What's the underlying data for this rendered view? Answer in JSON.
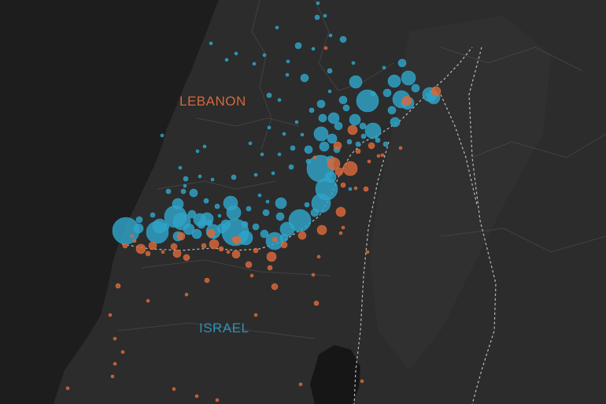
{
  "labels": {
    "lebanon": "LEBANON",
    "israel": "ISRAEL"
  },
  "colors": {
    "sea": "#1d1d1d",
    "land": "#2c2c2c",
    "land_shade": "#333333",
    "lake": "#161616",
    "border": "#bdbdbd",
    "district_lines": "#4a4a4a",
    "lebanon_label": "#d4693a",
    "israel_label": "#2e93b5",
    "blue_dots": "#2fa3c8",
    "orange_dots": "#d8693a"
  },
  "series": [
    {
      "color_key": "blue_dots",
      "points": [
        [
          404,
          4,
          2
        ],
        [
          403,
          22,
          3
        ],
        [
          413,
          20,
          2
        ],
        [
          352,
          35,
          2
        ],
        [
          436,
          50,
          4
        ],
        [
          420,
          45,
          2
        ],
        [
          379,
          58,
          4
        ],
        [
          268,
          55,
          2
        ],
        [
          288,
          76,
          2
        ],
        [
          300,
          68,
          2
        ],
        [
          336,
          70,
          2
        ],
        [
          323,
          81,
          2
        ],
        [
          366,
          78,
          2
        ],
        [
          398,
          62,
          2
        ],
        [
          449,
          80,
          2
        ],
        [
          511,
          80,
          5
        ],
        [
          488,
          86,
          2
        ],
        [
          387,
          99,
          5
        ],
        [
          365,
          95,
          2
        ],
        [
          419,
          90,
          3
        ],
        [
          452,
          104,
          8
        ],
        [
          501,
          103,
          8
        ],
        [
          519,
          99,
          9
        ],
        [
          528,
          112,
          5
        ],
        [
          492,
          118,
          5
        ],
        [
          546,
          120,
          9
        ],
        [
          551,
          124,
          8
        ],
        [
          467,
          128,
          14
        ],
        [
          510,
          126,
          11
        ],
        [
          518,
          131,
          8
        ],
        [
          436,
          127,
          5
        ],
        [
          474,
          119,
          3
        ],
        [
          342,
          121,
          3
        ],
        [
          355,
          127,
          2
        ],
        [
          408,
          132,
          5
        ],
        [
          419,
          116,
          2
        ],
        [
          440,
          137,
          4
        ],
        [
          451,
          152,
          7
        ],
        [
          461,
          160,
          4
        ],
        [
          498,
          140,
          5
        ],
        [
          502,
          155,
          6
        ],
        [
          410,
          150,
          5
        ],
        [
          396,
          140,
          3
        ],
        [
          377,
          155,
          2
        ],
        [
          342,
          162,
          2
        ],
        [
          361,
          170,
          2
        ],
        [
          384,
          171,
          2
        ],
        [
          424,
          150,
          7
        ],
        [
          430,
          160,
          5
        ],
        [
          474,
          166,
          10
        ],
        [
          480,
          178,
          3
        ],
        [
          490,
          183,
          3
        ],
        [
          408,
          170,
          9
        ],
        [
          422,
          176,
          6
        ],
        [
          428,
          190,
          4
        ],
        [
          444,
          180,
          3
        ],
        [
          455,
          183,
          3
        ],
        [
          412,
          186,
          6
        ],
        [
          392,
          190,
          5
        ],
        [
          372,
          188,
          3
        ],
        [
          355,
          196,
          2
        ],
        [
          333,
          196,
          2
        ],
        [
          318,
          182,
          2
        ],
        [
          260,
          186,
          2
        ],
        [
          251,
          192,
          2
        ],
        [
          229,
          213,
          2
        ],
        [
          236,
          227,
          3
        ],
        [
          254,
          224,
          2
        ],
        [
          270,
          228,
          2
        ],
        [
          297,
          225,
          3
        ],
        [
          325,
          222,
          2
        ],
        [
          347,
          220,
          2
        ],
        [
          370,
          212,
          3
        ],
        [
          392,
          205,
          3
        ],
        [
          407,
          214,
          17
        ],
        [
          415,
          240,
          14
        ],
        [
          420,
          225,
          7
        ],
        [
          408,
          258,
          12
        ],
        [
          400,
          270,
          5
        ],
        [
          381,
          280,
          14
        ],
        [
          365,
          291,
          9
        ],
        [
          356,
          275,
          5
        ],
        [
          357,
          258,
          7
        ],
        [
          338,
          270,
          4
        ],
        [
          340,
          256,
          2
        ],
        [
          330,
          248,
          2
        ],
        [
          316,
          265,
          3
        ],
        [
          293,
          258,
          9
        ],
        [
          297,
          270,
          9
        ],
        [
          276,
          262,
          3
        ],
        [
          262,
          255,
          3
        ],
        [
          246,
          245,
          5
        ],
        [
          233,
          243,
          3
        ],
        [
          214,
          243,
          3
        ],
        [
          226,
          259,
          7
        ],
        [
          244,
          272,
          5
        ],
        [
          254,
          279,
          8
        ],
        [
          263,
          278,
          8
        ],
        [
          271,
          294,
          9
        ],
        [
          282,
          290,
          6
        ],
        [
          299,
          295,
          17
        ],
        [
          287,
          285,
          6
        ],
        [
          231,
          281,
          11
        ],
        [
          223,
          275,
          14
        ],
        [
          203,
          287,
          9
        ],
        [
          200,
          295,
          14
        ],
        [
          211,
          288,
          4
        ],
        [
          194,
          273,
          3
        ],
        [
          176,
          290,
          6
        ],
        [
          160,
          293,
          17
        ],
        [
          177,
          279,
          4
        ],
        [
          240,
          291,
          7
        ],
        [
          226,
          300,
          6
        ],
        [
          250,
          297,
          6
        ],
        [
          256,
          285,
          5
        ],
        [
          266,
          283,
          4
        ],
        [
          312,
          302,
          9
        ],
        [
          336,
          297,
          5
        ],
        [
          349,
          306,
          11
        ],
        [
          361,
          302,
          5
        ],
        [
          325,
          288,
          4
        ],
        [
          311,
          285,
          4
        ],
        [
          390,
          260,
          3
        ],
        [
          445,
          240,
          2
        ],
        [
          206,
          172,
          2
        ],
        [
          235,
          236,
          2
        ],
        [
          272,
          301,
          2
        ],
        [
          279,
          274,
          2
        ],
        [
          420,
          203,
          5
        ],
        [
          462,
          173,
          3
        ]
      ]
    },
    {
      "color_key": "orange_dots",
      "points": [
        [
          414,
          61,
          2
        ],
        [
          554,
          116,
          6
        ],
        [
          517,
          128,
          6
        ],
        [
          448,
          165,
          6
        ],
        [
          429,
          185,
          5
        ],
        [
          472,
          185,
          4
        ],
        [
          509,
          188,
          2
        ],
        [
          424,
          208,
          8
        ],
        [
          445,
          214,
          9
        ],
        [
          431,
          218,
          5
        ],
        [
          486,
          197,
          2
        ],
        [
          469,
          205,
          2
        ],
        [
          400,
          200,
          2
        ],
        [
          455,
          192,
          3
        ],
        [
          433,
          269,
          6
        ],
        [
          409,
          292,
          6
        ],
        [
          384,
          299,
          5
        ],
        [
          361,
          311,
          4
        ],
        [
          345,
          326,
          6
        ],
        [
          301,
          305,
          5
        ],
        [
          281,
          316,
          3
        ],
        [
          290,
          320,
          2
        ],
        [
          300,
          323,
          5
        ],
        [
          316,
          336,
          4
        ],
        [
          272,
          310,
          6
        ],
        [
          259,
          312,
          3
        ],
        [
          237,
          327,
          4
        ],
        [
          225,
          322,
          5
        ],
        [
          221,
          313,
          4
        ],
        [
          207,
          320,
          2
        ],
        [
          194,
          312,
          5
        ],
        [
          179,
          316,
          6
        ],
        [
          188,
          322,
          3
        ],
        [
          171,
          306,
          2
        ],
        [
          159,
          312,
          3
        ],
        [
          168,
          300,
          2
        ],
        [
          230,
          300,
          5
        ],
        [
          268,
          296,
          5
        ],
        [
          298,
          304,
          3
        ],
        [
          325,
          318,
          3
        ],
        [
          343,
          340,
          3
        ],
        [
          349,
          364,
          4
        ],
        [
          263,
          356,
          3
        ],
        [
          150,
          363,
          3
        ],
        [
          237,
          374,
          2
        ],
        [
          402,
          385,
          3
        ],
        [
          398,
          349,
          2
        ],
        [
          436,
          289,
          2
        ],
        [
          433,
          296,
          2
        ],
        [
          467,
          320,
          2
        ],
        [
          349,
          304,
          3
        ],
        [
          436,
          235,
          3
        ],
        [
          188,
          382,
          2
        ],
        [
          140,
          400,
          2
        ],
        [
          146,
          430,
          2
        ],
        [
          156,
          447,
          2
        ],
        [
          146,
          462,
          2
        ],
        [
          143,
          478,
          2
        ],
        [
          221,
          494,
          2
        ],
        [
          250,
          503,
          2
        ],
        [
          276,
          508,
          2
        ],
        [
          382,
          488,
          2
        ],
        [
          460,
          484,
          2
        ],
        [
          86,
          493,
          2
        ],
        [
          325,
          400,
          2
        ],
        [
          320,
          350,
          2
        ],
        [
          405,
          326,
          2
        ],
        [
          452,
          239,
          2
        ],
        [
          465,
          240,
          3
        ],
        [
          481,
          198,
          2
        ]
      ]
    }
  ]
}
